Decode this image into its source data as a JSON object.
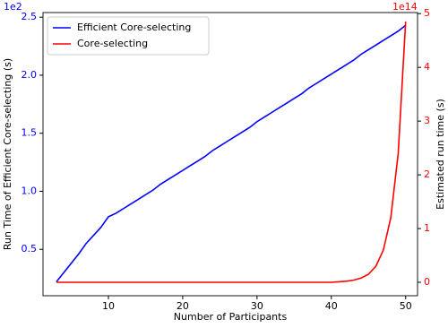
{
  "chart_data": {
    "type": "line",
    "xlabel": "Number of Participants",
    "ylabel": "Run Time of Efficient Core-selecting (s)",
    "y2label": "Estimated run time (s)",
    "y_offset_label": "1e2",
    "y2_offset_label": "1e14",
    "x": [
      3,
      4,
      5,
      6,
      7,
      8,
      9,
      10,
      11,
      12,
      13,
      14,
      15,
      16,
      17,
      18,
      19,
      20,
      21,
      22,
      23,
      24,
      25,
      26,
      27,
      28,
      29,
      30,
      31,
      32,
      33,
      34,
      35,
      36,
      37,
      38,
      39,
      40,
      41,
      42,
      43,
      44,
      45,
      46,
      47,
      48,
      49,
      50
    ],
    "series": [
      {
        "name": "Efficient Core-selecting",
        "color": "#0000ff",
        "axis": "y",
        "values": [
          0.22,
          0.3,
          0.38,
          0.46,
          0.55,
          0.62,
          0.69,
          0.78,
          0.81,
          0.85,
          0.89,
          0.93,
          0.97,
          1.01,
          1.06,
          1.1,
          1.14,
          1.18,
          1.22,
          1.26,
          1.3,
          1.35,
          1.39,
          1.43,
          1.47,
          1.51,
          1.55,
          1.6,
          1.64,
          1.68,
          1.72,
          1.76,
          1.8,
          1.84,
          1.89,
          1.93,
          1.97,
          2.01,
          2.05,
          2.09,
          2.13,
          2.18,
          2.22,
          2.26,
          2.3,
          2.34,
          2.38,
          2.43
        ]
      },
      {
        "name": "Core-selecting",
        "color": "#ff0000",
        "axis": "y2",
        "values": [
          0,
          0,
          0,
          0,
          0,
          0,
          0,
          0,
          0,
          0,
          0,
          0,
          0,
          0,
          0,
          0,
          0,
          0,
          0,
          0,
          0,
          0,
          0,
          0,
          0,
          0,
          0,
          0,
          0,
          0,
          0,
          0,
          0,
          0,
          0,
          0,
          0,
          0,
          0.01,
          0.02,
          0.04,
          0.08,
          0.15,
          0.3,
          0.6,
          1.2,
          2.4,
          4.85
        ]
      }
    ],
    "xlim": [
      1.2,
      51.6
    ],
    "xticks": [
      10,
      20,
      30,
      40,
      50
    ],
    "ylim": [
      0.1,
      2.54
    ],
    "yticks": [
      0.5,
      {
        "value": 1,
        "label": "1.0"
      },
      1.5,
      {
        "value": 2,
        "label": "2.0"
      },
      2.5
    ],
    "y2lim": [
      -0.25,
      5.02
    ],
    "y2ticks": [
      0,
      1,
      2,
      3,
      4,
      5
    ],
    "y_tick_color": "#0000ff",
    "y2_tick_color": "#ff0000",
    "legend": "upper-left"
  }
}
